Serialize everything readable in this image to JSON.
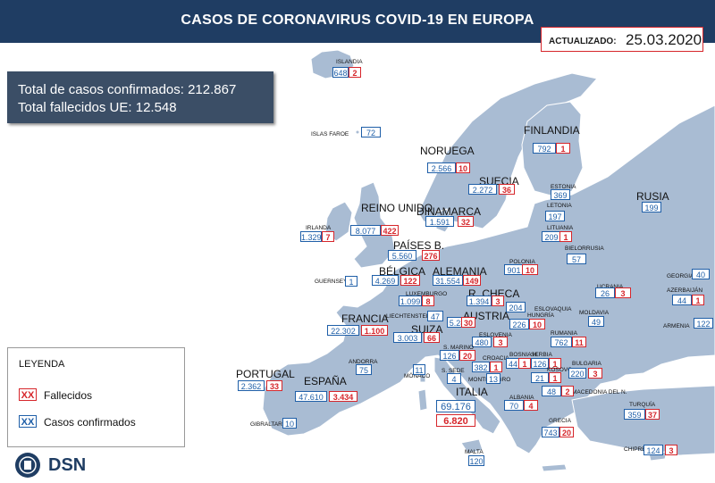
{
  "header": {
    "title": "CASOS DE CORONAVIRUS COVID-19 EN EUROPA"
  },
  "updated": {
    "label": "ACTUALIZADO:",
    "date": "25.03.2020"
  },
  "totals": {
    "confirmed": "Total de casos confirmados: 212.867",
    "deaths": "Total fallecidos UE: 12.548"
  },
  "legend": {
    "title": "LEYENDA",
    "deaths_sample": "XX",
    "deaths_label": "Fallecidos",
    "confirmed_sample": "XX",
    "confirmed_label": "Casos confirmados"
  },
  "logo": {
    "text": "DSN"
  },
  "colors": {
    "header": "#1f3d63",
    "land": "#a9bcd3",
    "confirmed": "#1f5fa8",
    "deaths": "#d6262b"
  },
  "countries": [
    {
      "name": "ISLANDIA",
      "confirmed": "648",
      "deaths": "2"
    },
    {
      "name": "ISLAS FAROE",
      "confirmed": "72",
      "deaths": ""
    },
    {
      "name": "NORUEGA",
      "confirmed": "2.566",
      "deaths": "10"
    },
    {
      "name": "FINLANDIA",
      "confirmed": "792",
      "deaths": "1"
    },
    {
      "name": "SUECIA",
      "confirmed": "2.272",
      "deaths": "36"
    },
    {
      "name": "RUSIA",
      "confirmed": "199",
      "deaths": ""
    },
    {
      "name": "ESTONIA",
      "confirmed": "369",
      "deaths": ""
    },
    {
      "name": "LETONIA",
      "confirmed": "197",
      "deaths": ""
    },
    {
      "name": "LITUANIA",
      "confirmed": "209",
      "deaths": "1"
    },
    {
      "name": "DINAMARCA",
      "confirmed": "1.591",
      "deaths": "32"
    },
    {
      "name": "REINO UNIDO",
      "confirmed": "8.077",
      "deaths": "422"
    },
    {
      "name": "IRLANDA",
      "confirmed": "1.329",
      "deaths": "7"
    },
    {
      "name": "BIELORRUSIA",
      "confirmed": "57",
      "deaths": ""
    },
    {
      "name": "PAÍSES B.",
      "confirmed": "5.560",
      "deaths": "276"
    },
    {
      "name": "POLONIA",
      "confirmed": "901",
      "deaths": "10"
    },
    {
      "name": "BÉLGICA",
      "confirmed": "4.269",
      "deaths": "122"
    },
    {
      "name": "ALEMANIA",
      "confirmed": "31.554",
      "deaths": "149"
    },
    {
      "name": "GUERNSEY",
      "confirmed": "1",
      "deaths": ""
    },
    {
      "name": "LUXEMBURGO",
      "confirmed": "1.099",
      "deaths": "8"
    },
    {
      "name": "R. CHECA",
      "confirmed": "1.394",
      "deaths": "3"
    },
    {
      "name": "UCRANIA",
      "confirmed": "26",
      "deaths": "3"
    },
    {
      "name": "GEORGIA",
      "confirmed": "40",
      "deaths": ""
    },
    {
      "name": "AZERBAIJÁN",
      "confirmed": "44",
      "deaths": "1"
    },
    {
      "name": "ESLOVAQUIA",
      "confirmed": "204",
      "deaths": ""
    },
    {
      "name": "LIECHTENSTEIN",
      "confirmed": "47",
      "deaths": ""
    },
    {
      "name": "FRANCIA",
      "confirmed": "22.302",
      "deaths": "1.100"
    },
    {
      "name": "AUSTRIA",
      "confirmed": "5.282",
      "deaths": "30"
    },
    {
      "name": "HUNGRÍA",
      "confirmed": "226",
      "deaths": "10"
    },
    {
      "name": "MOLDAVIA",
      "confirmed": "49",
      "deaths": ""
    },
    {
      "name": "ARMENIA",
      "confirmed": "122",
      "deaths": ""
    },
    {
      "name": "SUIZA",
      "confirmed": "3.003",
      "deaths": "66"
    },
    {
      "name": "ESLOVENIA",
      "confirmed": "480",
      "deaths": "3"
    },
    {
      "name": "RUMANIA",
      "confirmed": "762",
      "deaths": "11"
    },
    {
      "name": "ANDORRA",
      "confirmed": "75",
      "deaths": ""
    },
    {
      "name": "S. MARINO",
      "confirmed": "126",
      "deaths": "20"
    },
    {
      "name": "CROACIA",
      "confirmed": "382",
      "deaths": "1"
    },
    {
      "name": "BOSNIA H.",
      "confirmed": "44",
      "deaths": "1"
    },
    {
      "name": "SERBIA",
      "confirmed": "126",
      "deaths": "1"
    },
    {
      "name": "PORTUGAL",
      "confirmed": "2.362",
      "deaths": "33"
    },
    {
      "name": "ESPAÑA",
      "confirmed": "47.610",
      "deaths": "3.434"
    },
    {
      "name": "MÓNACO",
      "confirmed": "11",
      "deaths": ""
    },
    {
      "name": "S. SEDE",
      "confirmed": "4",
      "deaths": ""
    },
    {
      "name": "MONTENEGRO",
      "confirmed": "13",
      "deaths": ""
    },
    {
      "name": "KOSOVO",
      "confirmed": "21",
      "deaths": "1"
    },
    {
      "name": "BULGARIA",
      "confirmed": "220",
      "deaths": "3"
    },
    {
      "name": "ITALIA",
      "confirmed": "69.176",
      "deaths": "6.820"
    },
    {
      "name": "ALBANIA",
      "confirmed": "70",
      "deaths": "4"
    },
    {
      "name": "MACEDONIA DEL N.",
      "confirmed": "48",
      "deaths": "2"
    },
    {
      "name": "TURQUÍA",
      "confirmed": "359",
      "deaths": "37"
    },
    {
      "name": "GIBRALTAR",
      "confirmed": "10",
      "deaths": ""
    },
    {
      "name": "GRECIA",
      "confirmed": "743",
      "deaths": "20"
    },
    {
      "name": "MALTA",
      "confirmed": "120",
      "deaths": ""
    },
    {
      "name": "CHIPRE",
      "confirmed": "124",
      "deaths": "3"
    }
  ]
}
